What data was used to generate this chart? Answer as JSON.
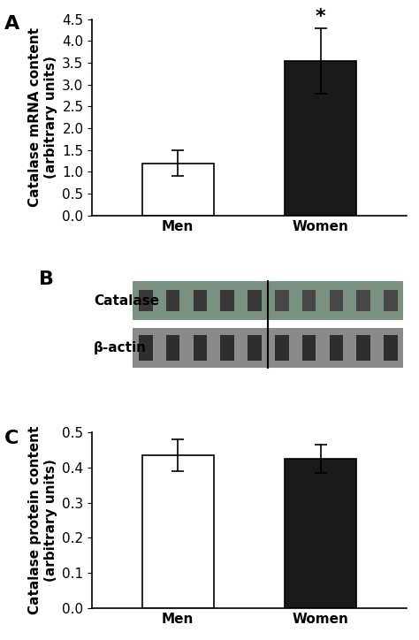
{
  "panel_A": {
    "categories": [
      "Men",
      "Women"
    ],
    "values": [
      1.2,
      3.55
    ],
    "errors": [
      0.3,
      0.75
    ],
    "colors": [
      "#ffffff",
      "#1a1a1a"
    ],
    "edge_colors": [
      "#000000",
      "#000000"
    ],
    "ylabel": "Catalase mRNA content\n(arbitrary units)",
    "ylim": [
      0.0,
      4.5
    ],
    "yticks": [
      0.0,
      0.5,
      1.0,
      1.5,
      2.0,
      2.5,
      3.0,
      3.5,
      4.0,
      4.5
    ],
    "significance_label": "*",
    "panel_label": "A"
  },
  "panel_B": {
    "panel_label": "B",
    "catalase_label": "Catalase",
    "actin_label": "β-actin"
  },
  "panel_C": {
    "categories": [
      "Men",
      "Women"
    ],
    "values": [
      0.435,
      0.425
    ],
    "errors": [
      0.045,
      0.04
    ],
    "colors": [
      "#ffffff",
      "#1a1a1a"
    ],
    "edge_colors": [
      "#000000",
      "#000000"
    ],
    "ylabel": "Catalase protein content\n(arbitrary units)",
    "ylim": [
      0.0,
      0.5
    ],
    "yticks": [
      0.0,
      0.1,
      0.2,
      0.3,
      0.4,
      0.5
    ],
    "panel_label": "C"
  },
  "bar_width": 0.5,
  "capsize": 5,
  "background_color": "#ffffff",
  "text_color": "#000000",
  "font_size": 11,
  "label_font_size": 11,
  "panel_label_font_size": 16
}
